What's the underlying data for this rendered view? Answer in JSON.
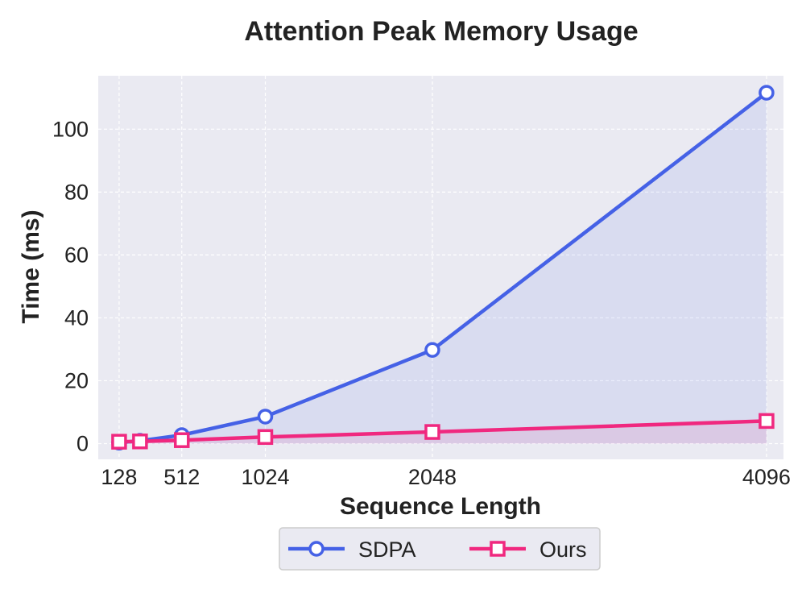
{
  "chart_data": {
    "type": "line",
    "title": "Attention Peak Memory Usage",
    "xlabel": "Sequence Length",
    "ylabel": "Time (ms)",
    "x": [
      128,
      256,
      512,
      1024,
      2048,
      4096
    ],
    "x_ticks": [
      128,
      512,
      1024,
      2048,
      4096
    ],
    "y_ticks": [
      0,
      20,
      40,
      60,
      80,
      100
    ],
    "ylim": [
      -5,
      117
    ],
    "xlim": [
      0,
      4200
    ],
    "grid": true,
    "legend_position": "bottom-center",
    "series": [
      {
        "name": "SDPA",
        "values": [
          0.3,
          0.9,
          2.7,
          8.6,
          29.8,
          111.6
        ],
        "color": "#4561e6",
        "marker": "circle",
        "filled": true
      },
      {
        "name": "Ours",
        "values": [
          0.6,
          0.7,
          1.1,
          2.1,
          3.7,
          7.2
        ],
        "color": "#f0287f",
        "marker": "square",
        "filled": true
      }
    ],
    "plot_background": "#eaeaf2"
  }
}
